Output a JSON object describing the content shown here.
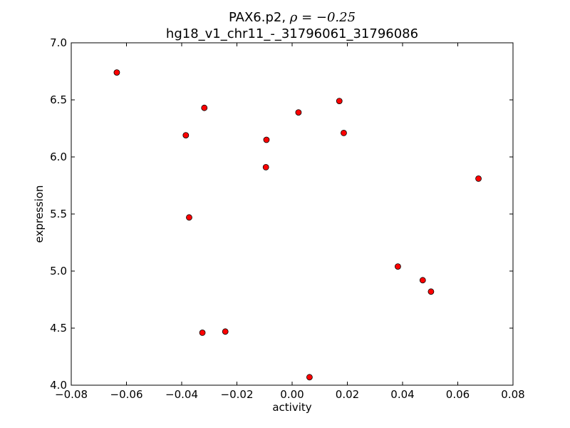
{
  "chart_data": {
    "type": "scatter",
    "title_prefix": "PAX6.p2, ",
    "title_rho": "ρ = −0.25",
    "subtitle": "hg18_v1_chr11_-_31796061_31796086",
    "xlabel": "activity",
    "ylabel": "expression",
    "xlim": [
      -0.08,
      0.08
    ],
    "ylim": [
      4.0,
      7.0
    ],
    "x_ticks": [
      -0.08,
      -0.06,
      -0.04,
      -0.02,
      0.0,
      0.02,
      0.04,
      0.06,
      0.08
    ],
    "x_tick_labels": [
      "−0.08",
      "−0.06",
      "−0.04",
      "−0.02",
      "0.00",
      "0.02",
      "0.04",
      "0.06",
      "0.08"
    ],
    "y_ticks": [
      4.0,
      4.5,
      5.0,
      5.5,
      6.0,
      6.5,
      7.0
    ],
    "y_tick_labels": [
      "4.0",
      "4.5",
      "5.0",
      "5.5",
      "6.0",
      "6.5",
      "7.0"
    ],
    "grid": false,
    "legend": "none",
    "marker_color": "#ff0000",
    "marker_edge_color": "#000000",
    "points": [
      {
        "x": -0.0635,
        "y": 6.74
      },
      {
        "x": -0.0385,
        "y": 6.19
      },
      {
        "x": -0.0373,
        "y": 5.47
      },
      {
        "x": -0.0318,
        "y": 6.43
      },
      {
        "x": -0.0325,
        "y": 4.46
      },
      {
        "x": -0.0242,
        "y": 4.47
      },
      {
        "x": -0.0093,
        "y": 6.15
      },
      {
        "x": -0.0095,
        "y": 5.91
      },
      {
        "x": 0.0023,
        "y": 6.39
      },
      {
        "x": 0.0063,
        "y": 4.07
      },
      {
        "x": 0.0171,
        "y": 6.49
      },
      {
        "x": 0.0187,
        "y": 6.21
      },
      {
        "x": 0.0383,
        "y": 5.04
      },
      {
        "x": 0.0473,
        "y": 4.92
      },
      {
        "x": 0.0503,
        "y": 4.82
      },
      {
        "x": 0.0675,
        "y": 5.81
      }
    ]
  }
}
